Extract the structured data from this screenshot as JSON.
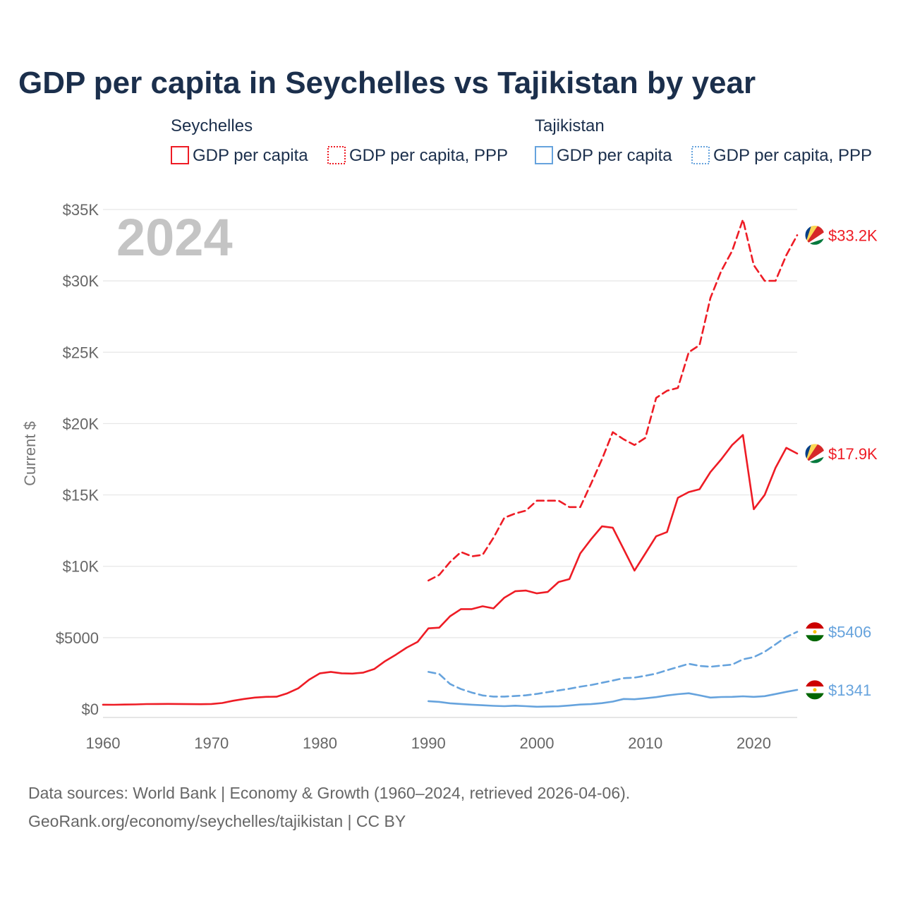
{
  "title": "GDP per capita in Seychelles vs Tajikistan by year",
  "year_label": "2024",
  "legend": {
    "groups": [
      {
        "name": "Seychelles",
        "color": "#ee1c25",
        "items": [
          "GDP per capita",
          "GDP per capita, PPP"
        ]
      },
      {
        "name": "Tajikistan",
        "color": "#66a3dd",
        "items": [
          "GDP per capita",
          "GDP per capita, PPP"
        ]
      }
    ]
  },
  "end_labels": {
    "sey_ppp": "$33.2K",
    "sey_gdp": "$17.9K",
    "taj_ppp": "$5406",
    "taj_gdp": "$1341"
  },
  "source": {
    "line1": "Data sources: World Bank | Economy & Growth (1960–2024, retrieved 2026-04-06).",
    "line2": "GeoRank.org/economy/seychelles/tajikistan | CC BY"
  },
  "chart_data": {
    "type": "line",
    "title": "GDP per capita in Seychelles vs Tajikistan by year",
    "xlabel": "",
    "ylabel": "Current $",
    "xlim": [
      1960,
      2024
    ],
    "ylim": [
      0,
      35000
    ],
    "x_ticks": [
      1960,
      1970,
      1980,
      1990,
      2000,
      2010,
      2020
    ],
    "x_tick_labels": [
      "1960",
      "1970",
      "1980",
      "1990",
      "2000",
      "2010",
      "2020"
    ],
    "y_ticks": [
      0,
      5000,
      10000,
      15000,
      20000,
      25000,
      30000,
      35000
    ],
    "y_tick_labels": [
      "$0",
      "$5000",
      "$10K",
      "$15K",
      "$20K",
      "$25K",
      "$30K",
      "$35K"
    ],
    "series": [
      {
        "name": "Seychelles GDP per capita",
        "color": "#ee1c25",
        "style": "solid",
        "x": [
          1960,
          1961,
          1962,
          1963,
          1964,
          1965,
          1966,
          1967,
          1968,
          1969,
          1970,
          1971,
          1972,
          1973,
          1974,
          1975,
          1976,
          1977,
          1978,
          1979,
          1980,
          1981,
          1982,
          1983,
          1984,
          1985,
          1986,
          1987,
          1988,
          1989,
          1990,
          1991,
          1992,
          1993,
          1994,
          1995,
          1996,
          1997,
          1998,
          1999,
          2000,
          2001,
          2002,
          2003,
          2004,
          2005,
          2006,
          2007,
          2008,
          2009,
          2010,
          2011,
          2012,
          2013,
          2014,
          2015,
          2016,
          2017,
          2018,
          2019,
          2020,
          2021,
          2022,
          2023,
          2024
        ],
        "values": [
          300,
          295,
          310,
          320,
          345,
          350,
          355,
          350,
          340,
          335,
          350,
          420,
          580,
          700,
          800,
          850,
          860,
          1100,
          1450,
          2050,
          2500,
          2600,
          2500,
          2480,
          2550,
          2800,
          3350,
          3800,
          4300,
          4700,
          5650,
          5700,
          6500,
          7000,
          7000,
          7200,
          7050,
          7800,
          8250,
          8300,
          8100,
          8200,
          8900,
          9100,
          10900,
          11900,
          12800,
          12700,
          11200,
          9700,
          10900,
          12100,
          12400,
          14800,
          15200,
          15400,
          16600,
          17500,
          18500,
          19200,
          14000,
          15000,
          16900,
          18300,
          17900
        ]
      },
      {
        "name": "Seychelles GDP per capita, PPP",
        "color": "#ee1c25",
        "style": "dashed",
        "x": [
          1990,
          1991,
          1992,
          1993,
          1994,
          1995,
          1996,
          1997,
          1998,
          1999,
          2000,
          2001,
          2002,
          2003,
          2004,
          2005,
          2006,
          2007,
          2008,
          2009,
          2010,
          2011,
          2012,
          2013,
          2014,
          2015,
          2016,
          2017,
          2018,
          2019,
          2020,
          2021,
          2022,
          2023,
          2024
        ],
        "values": [
          9000,
          9400,
          10300,
          11000,
          10700,
          10800,
          12000,
          13400,
          13700,
          13900,
          14600,
          14600,
          14600,
          14150,
          14150,
          15800,
          17500,
          19400,
          18900,
          18500,
          19000,
          21800,
          22300,
          22500,
          25000,
          25500,
          28800,
          30700,
          32100,
          34300,
          31100,
          30000,
          30000,
          31800,
          33200
        ]
      },
      {
        "name": "Tajikistan GDP per capita",
        "color": "#66a3dd",
        "style": "solid",
        "x": [
          1990,
          1991,
          1992,
          1993,
          1994,
          1995,
          1996,
          1997,
          1998,
          1999,
          2000,
          2001,
          2002,
          2003,
          2004,
          2005,
          2006,
          2007,
          2008,
          2009,
          2010,
          2011,
          2012,
          2013,
          2014,
          2015,
          2016,
          2017,
          2018,
          2019,
          2020,
          2021,
          2022,
          2023,
          2024
        ],
        "values": [
          550,
          500,
          400,
          350,
          300,
          260,
          220,
          200,
          230,
          200,
          160,
          180,
          190,
          240,
          310,
          340,
          410,
          520,
          700,
          680,
          750,
          830,
          950,
          1040,
          1100,
          960,
          800,
          840,
          850,
          890,
          850,
          900,
          1050,
          1200,
          1341
        ]
      },
      {
        "name": "Tajikistan GDP per capita, PPP",
        "color": "#66a3dd",
        "style": "dashed",
        "x": [
          1990,
          1991,
          1992,
          1993,
          1994,
          1995,
          1996,
          1997,
          1998,
          1999,
          2000,
          2001,
          2002,
          2003,
          2004,
          2005,
          2006,
          2007,
          2008,
          2009,
          2010,
          2011,
          2012,
          2013,
          2014,
          2015,
          2016,
          2017,
          2018,
          2019,
          2020,
          2021,
          2022,
          2023,
          2024
        ],
        "values": [
          2600,
          2450,
          1750,
          1400,
          1150,
          950,
          870,
          870,
          910,
          960,
          1060,
          1180,
          1300,
          1420,
          1560,
          1680,
          1840,
          1990,
          2160,
          2200,
          2330,
          2480,
          2720,
          2940,
          3170,
          3020,
          2960,
          3040,
          3110,
          3480,
          3640,
          4010,
          4530,
          5050,
          5406
        ]
      }
    ]
  }
}
